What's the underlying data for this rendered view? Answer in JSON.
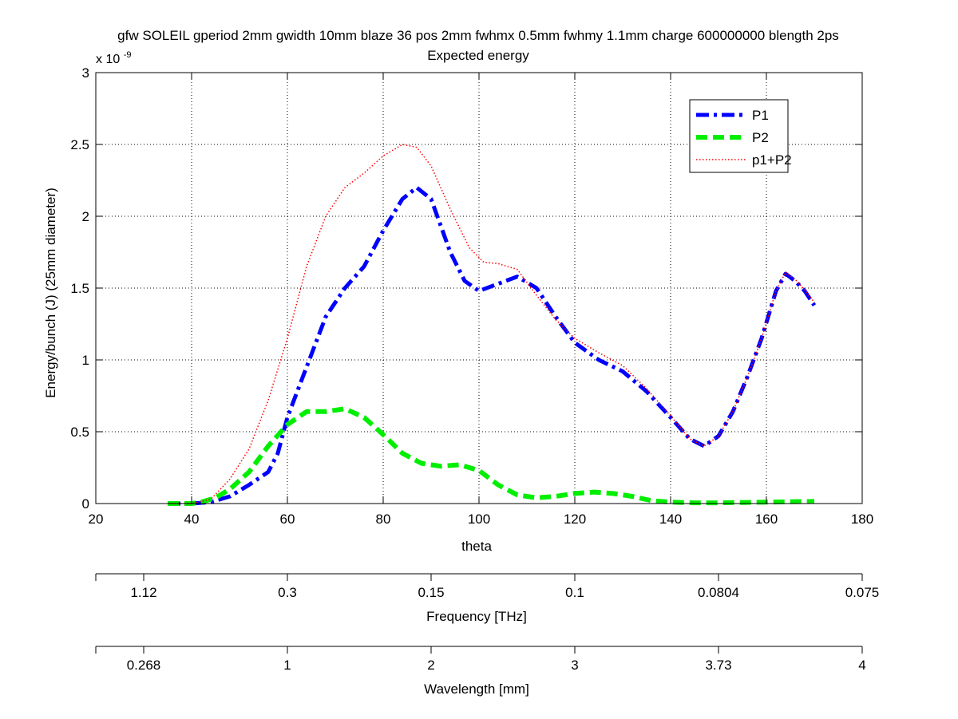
{
  "chart_data": {
    "type": "line",
    "title": "gfw SOLEIL gperiod 2mm gwidth 10mm blaze 36 pos 2mm fwhmx 0.5mm fwhmy 1.1mm charge 600000000 blength 2ps",
    "subtitle": "Expected energy",
    "xlabel": "theta",
    "ylabel": "Energy/bunch (J) (25mm diameter)",
    "y_multiplier_label": "x 10",
    "y_multiplier_exponent": "-9",
    "xlim": [
      20,
      180
    ],
    "ylim": [
      0,
      3
    ],
    "x_ticks": [
      20,
      40,
      60,
      80,
      100,
      120,
      140,
      160,
      180
    ],
    "y_ticks": [
      0,
      0.5,
      1,
      1.5,
      2,
      2.5,
      3
    ],
    "y_tick_labels": [
      "0",
      "0.5",
      "1",
      "1.5",
      "2",
      "2.5",
      "3"
    ],
    "grid": true,
    "legend_position": "top-right",
    "series": [
      {
        "name": "P1",
        "color": "#0000ff",
        "style": "dashdot",
        "x": [
          35,
          40,
          44,
          48,
          52,
          56,
          58,
          60,
          64,
          68,
          72,
          76,
          80,
          84,
          87,
          90,
          94,
          97,
          100,
          104,
          108,
          112,
          116,
          120,
          125,
          130,
          135,
          140,
          144,
          147,
          150,
          153,
          156,
          159,
          162,
          164,
          166,
          168,
          170
        ],
        "y": [
          0,
          0,
          0.01,
          0.05,
          0.13,
          0.22,
          0.35,
          0.6,
          0.95,
          1.3,
          1.5,
          1.65,
          1.9,
          2.12,
          2.2,
          2.12,
          1.75,
          1.55,
          1.48,
          1.53,
          1.58,
          1.5,
          1.3,
          1.12,
          1.0,
          0.92,
          0.78,
          0.6,
          0.45,
          0.4,
          0.47,
          0.64,
          0.88,
          1.15,
          1.48,
          1.6,
          1.55,
          1.48,
          1.38
        ]
      },
      {
        "name": "P2",
        "color": "#00ee00",
        "style": "dashed",
        "x": [
          35,
          40,
          42,
          45,
          48,
          52,
          56,
          60,
          64,
          68,
          72,
          76,
          80,
          84,
          88,
          92,
          96,
          100,
          104,
          108,
          112,
          116,
          120,
          124,
          128,
          132,
          136,
          140,
          145,
          150,
          160,
          170
        ],
        "y": [
          0,
          0,
          0.01,
          0.04,
          0.1,
          0.22,
          0.4,
          0.55,
          0.64,
          0.64,
          0.66,
          0.6,
          0.48,
          0.35,
          0.28,
          0.26,
          0.27,
          0.23,
          0.13,
          0.06,
          0.04,
          0.05,
          0.07,
          0.08,
          0.07,
          0.05,
          0.02,
          0.01,
          0.005,
          0.005,
          0.01,
          0.015
        ]
      },
      {
        "name": "p1+P2",
        "color": "#ff0000",
        "style": "dotted",
        "x": [
          35,
          40,
          44,
          48,
          52,
          56,
          60,
          64,
          68,
          72,
          76,
          80,
          84,
          87,
          90,
          94,
          98,
          101,
          104,
          108,
          112,
          116,
          120,
          125,
          130,
          135,
          140,
          144,
          147,
          150,
          153,
          156,
          159,
          162,
          164,
          166,
          168,
          170
        ],
        "y": [
          0,
          0,
          0.03,
          0.17,
          0.38,
          0.72,
          1.15,
          1.65,
          2.0,
          2.2,
          2.3,
          2.42,
          2.5,
          2.48,
          2.35,
          2.05,
          1.78,
          1.68,
          1.67,
          1.63,
          1.45,
          1.28,
          1.15,
          1.05,
          0.96,
          0.8,
          0.61,
          0.45,
          0.4,
          0.47,
          0.64,
          0.88,
          1.15,
          1.48,
          1.61,
          1.56,
          1.49,
          1.4
        ]
      }
    ],
    "secondary_axes": [
      {
        "label": "Frequency [THz]",
        "ticks": [
          20,
          30,
          60,
          90,
          120,
          150,
          180
        ],
        "tick_labels": [
          "",
          "1.12",
          "0.3",
          "0.15",
          "0.1",
          "0.0804",
          "0.075"
        ]
      },
      {
        "label": "Wavelength [mm]",
        "ticks": [
          20,
          30,
          60,
          90,
          120,
          150,
          180
        ],
        "tick_labels": [
          "",
          "0.268",
          "1",
          "2",
          "3",
          "3.73",
          "4"
        ]
      }
    ]
  }
}
